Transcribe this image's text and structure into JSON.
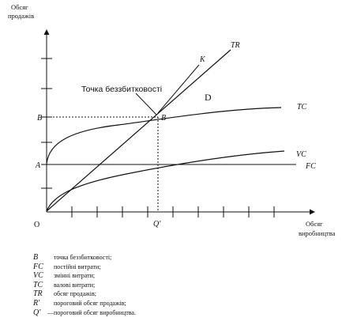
{
  "diagram": {
    "y_axis_title_line1": "Обсяг",
    "y_axis_title_line2": "продажів",
    "x_axis_title_line1": "Обсяг",
    "x_axis_title_line2": "виробництва",
    "origin_label": "О",
    "y_label_B": "В",
    "y_label_A": "A",
    "x_label_Q": "Q'",
    "point_B_label": "B",
    "annotation_breakeven": "Точка беззбитковості",
    "region_D": "D",
    "curve_labels": {
      "TR": "TR",
      "K": "K",
      "TC": "TC",
      "VC": "VC",
      "FC": "FC"
    }
  },
  "legend": [
    {
      "symbol": "B",
      "separator": "",
      "text": "точка беззбитковості;"
    },
    {
      "symbol": "FC",
      "separator": "",
      "text": "постійні витрати;"
    },
    {
      "symbol": "VC",
      "separator": "",
      "text": "змінні витрати;"
    },
    {
      "symbol": "TC",
      "separator": "",
      "text": "валові витрати;"
    },
    {
      "symbol": "TR",
      "separator": "",
      "text": "обсяг продажів;"
    },
    {
      "symbol": "R'",
      "separator": "",
      "text": "пороговий обсяг продажів;"
    },
    {
      "symbol": "Q'",
      "separator": "—",
      "text": "пороговий обсяг виробництва."
    }
  ]
}
